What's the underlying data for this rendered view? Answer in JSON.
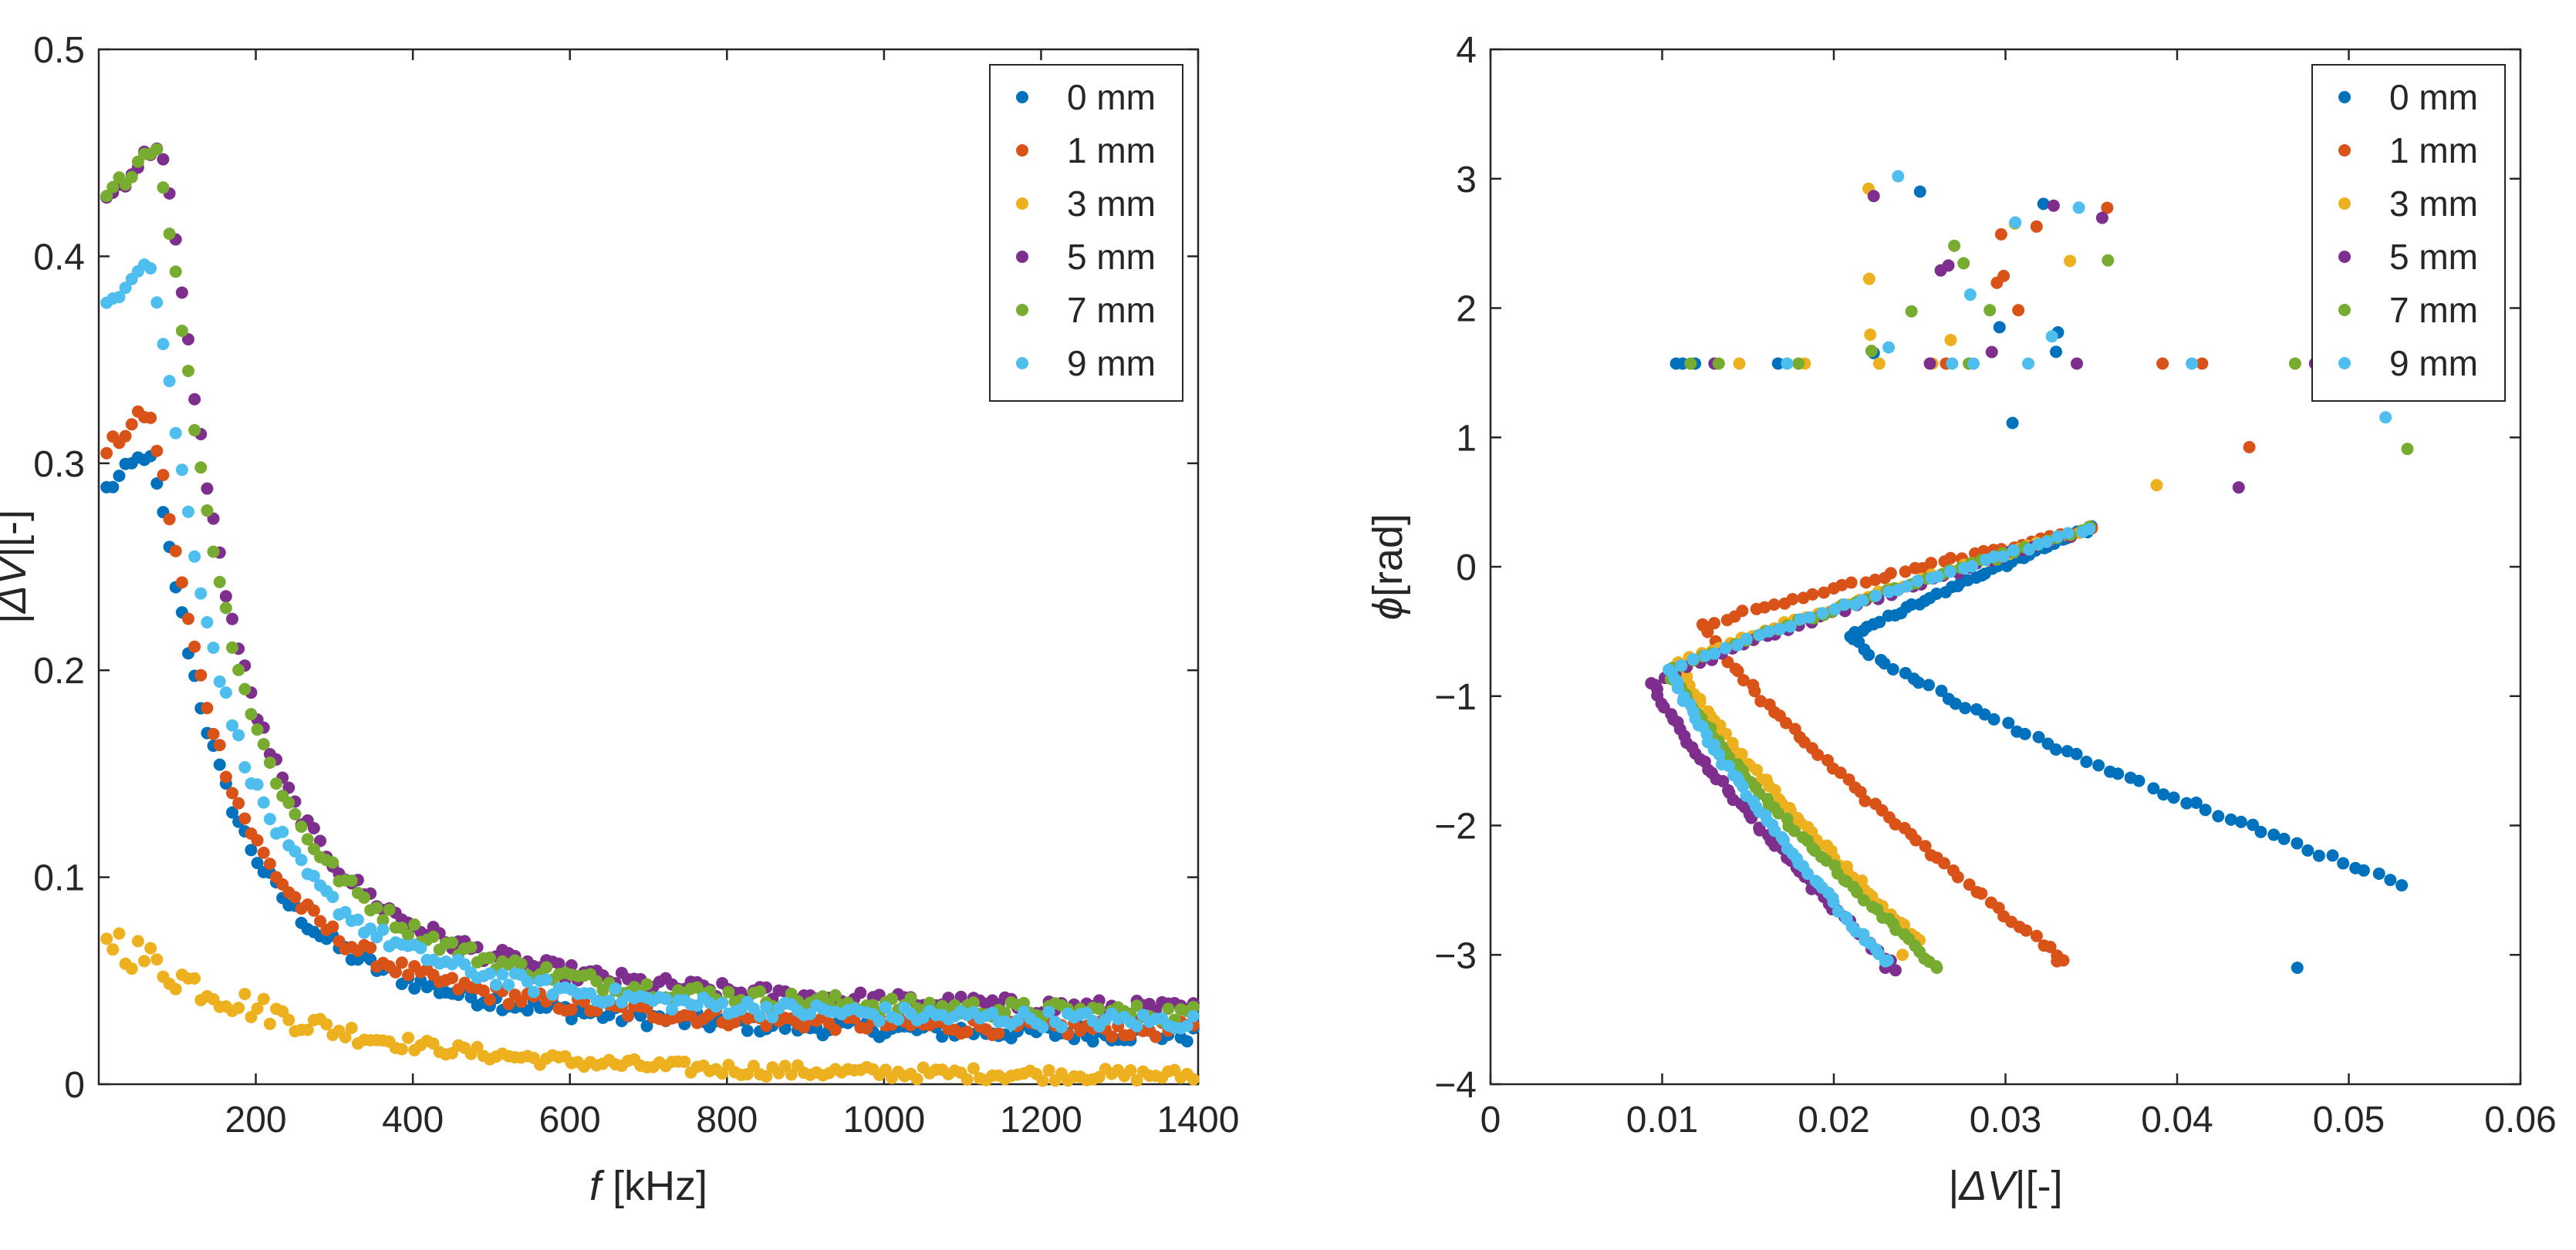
{
  "chart_data": [
    {
      "type": "scatter",
      "title": "",
      "xlabel_italic": "f",
      "xlabel_rest": " [kHz]",
      "ylabel_italic": "ΔV",
      "ylabel_left": "|",
      "ylabel_rest": "|[-]",
      "xlim": [
        0,
        1400
      ],
      "ylim": [
        0,
        0.5
      ],
      "xticks": [
        200,
        400,
        600,
        800,
        1000,
        1200,
        1400
      ],
      "xtick_labels": [
        "200",
        "400",
        "600",
        "800",
        "1000",
        "1200",
        "1400"
      ],
      "yticks": [
        0,
        0.1,
        0.2,
        0.3,
        0.4,
        0.5
      ],
      "ytick_labels": [
        "0",
        "0.1",
        "0.2",
        "0.3",
        "0.4",
        "0.5"
      ],
      "legend_position": "top-right",
      "series": [
        {
          "name": "0 mm",
          "color": "#0072BD",
          "peak": 0.305,
          "peak_f": 60,
          "tail": 0.02
        },
        {
          "name": "1 mm",
          "color": "#D95319",
          "peak": 0.325,
          "peak_f": 60,
          "tail": 0.022
        },
        {
          "name": "3 mm",
          "color": "#EDB120",
          "peak": 0.07,
          "peak_f": 20,
          "tail": 0.004
        },
        {
          "name": "5 mm",
          "color": "#7E2F8E",
          "peak": 0.455,
          "peak_f": 75,
          "tail": 0.03
        },
        {
          "name": "7 mm",
          "color": "#77AC30",
          "peak": 0.455,
          "peak_f": 70,
          "tail": 0.028
        },
        {
          "name": "9 mm",
          "color": "#4DBEEE",
          "peak": 0.4,
          "peak_f": 60,
          "tail": 0.025
        }
      ]
    },
    {
      "type": "scatter",
      "title": "",
      "xlabel_italic": "ΔV",
      "xlabel_left": "|",
      "xlabel_rest": "|[-]",
      "ylabel_italic": "ϕ",
      "ylabel_rest": "[rad]",
      "xlim": [
        0,
        0.06
      ],
      "ylim": [
        -4,
        4
      ],
      "xticks": [
        0,
        0.01,
        0.02,
        0.03,
        0.04,
        0.05,
        0.06
      ],
      "xtick_labels": [
        "0",
        "0.01",
        "0.02",
        "0.03",
        "0.04",
        "0.05",
        "0.06"
      ],
      "yticks": [
        -4,
        -3,
        -2,
        -1,
        0,
        1,
        2,
        3,
        4
      ],
      "ytick_labels": [
        "−4",
        "−3",
        "−2",
        "−1",
        "0",
        "1",
        "2",
        "3",
        "4"
      ],
      "legend_position": "top-right",
      "series": [
        {
          "name": "0 mm",
          "color": "#0072BD",
          "vertex": [
            0.021,
            -0.55
          ],
          "end": [
            0.053,
            -2.45
          ],
          "tip": [
            0.047,
            -3.1
          ]
        },
        {
          "name": "1 mm",
          "color": "#D95319",
          "vertex": [
            0.0125,
            -0.45
          ],
          "end": [
            0.0335,
            -3.05
          ],
          "tip": [
            0.033,
            -3.05
          ]
        },
        {
          "name": "3 mm",
          "color": "#EDB120",
          "vertex": [
            0.011,
            -0.75
          ],
          "end": [
            0.025,
            -2.9
          ],
          "tip": [
            0.024,
            -3.0
          ]
        },
        {
          "name": "5 mm",
          "color": "#7E2F8E",
          "vertex": [
            0.0095,
            -0.9
          ],
          "end": [
            0.0235,
            -3.1
          ],
          "tip": [
            0.023,
            -3.1
          ]
        },
        {
          "name": "7 mm",
          "color": "#77AC30",
          "vertex": [
            0.0105,
            -0.8
          ],
          "end": [
            0.026,
            -3.1
          ],
          "tip": [
            0.026,
            -3.1
          ]
        },
        {
          "name": "9 mm",
          "color": "#4DBEEE",
          "vertex": [
            0.0105,
            -0.8
          ],
          "end": [
            0.023,
            -3.05
          ],
          "tip": [
            0.023,
            -3.05
          ]
        }
      ],
      "upper_branch_end": [
        0.035,
        0.3
      ]
    }
  ]
}
